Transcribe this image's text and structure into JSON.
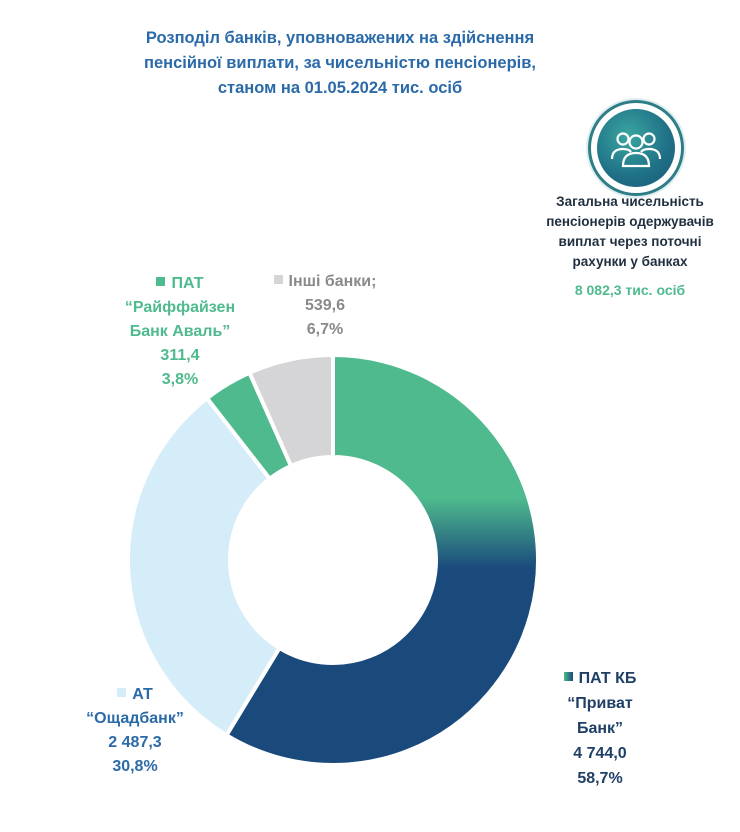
{
  "header": {
    "title_lines": [
      "Розподіл банків, уповноважених на здійснення",
      "пенсійної виплати, за чисельністю пенсіонерів,",
      "станом на 01.05.2024 тис. осіб"
    ]
  },
  "total": {
    "icon": "people-group-icon",
    "label_lines": [
      "Загальна чисельність",
      "пенсіонерів одержувачів",
      "виплат через поточні",
      "рахунки у банках"
    ],
    "value": "8 082,3 тис. осіб"
  },
  "chart_data": {
    "type": "pie",
    "variant": "donut",
    "title": "Розподіл банків, уповноважених на здійснення пенсійної виплати, за чисельністю пенсіонерів, станом на 01.05.2024 тис. осіб",
    "unit": "тис. осіб",
    "total": 8082.3,
    "slices": [
      {
        "name": "ПАТ КБ “Приват Банк”",
        "name_lines": [
          "ПАТ КБ",
          "“Приват",
          "Банк”"
        ],
        "value": 4744.0,
        "value_text": "4 744,0",
        "percent": 58.7,
        "percent_text": "58,7%",
        "color": "#1a4a7c",
        "color_top": "#4fba8d"
      },
      {
        "name": "АТ “Ощадбанк”",
        "name_lines": [
          "АТ",
          "“Ощадбанк”"
        ],
        "value": 2487.3,
        "value_text": "2 487,3",
        "percent": 30.8,
        "percent_text": "30,8%",
        "color": "#d5ecf9"
      },
      {
        "name": "ПАТ “Райффайзен Банк Аваль”",
        "name_lines": [
          "ПАТ",
          "“Райффайзен",
          "Банк Аваль”"
        ],
        "value": 311.4,
        "value_text": "311,4",
        "percent": 3.8,
        "percent_text": "3,8%",
        "color": "#4fba8d"
      },
      {
        "name": "Інші банки;",
        "name_lines": [
          "Інші банки;"
        ],
        "value": 539.6,
        "value_text": "539,6",
        "percent": 6.7,
        "percent_text": "6,7%",
        "color": "#d5d5d7"
      }
    ]
  }
}
